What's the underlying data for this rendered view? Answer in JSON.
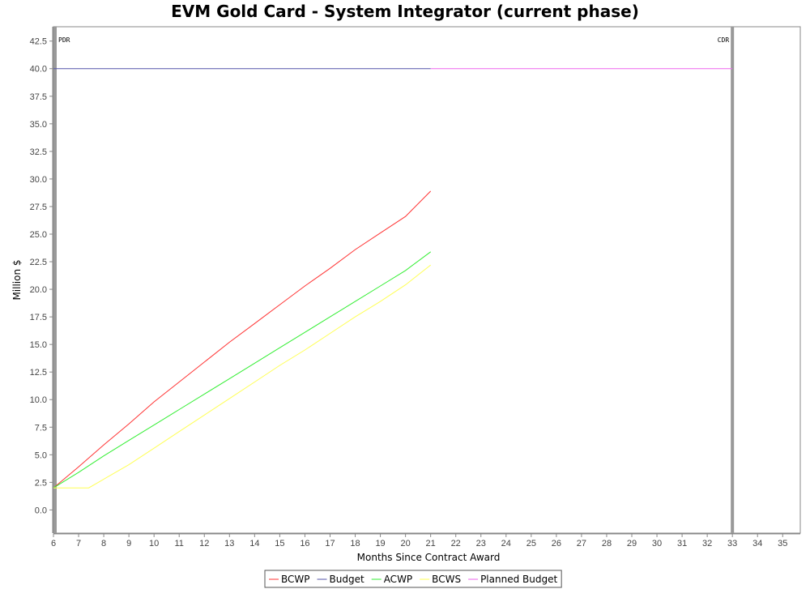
{
  "chart_data": {
    "type": "line",
    "title": "EVM Gold Card - System Integrator (current phase)",
    "xlabel": "Months Since Contract Award",
    "ylabel": "Million $",
    "xlim": [
      6,
      35.7
    ],
    "ylim": [
      -2.1,
      43.8
    ],
    "xticks": [
      6,
      7,
      8,
      9,
      10,
      11,
      12,
      13,
      14,
      15,
      16,
      17,
      18,
      19,
      20,
      21,
      22,
      23,
      24,
      25,
      26,
      27,
      28,
      29,
      30,
      31,
      32,
      33,
      34,
      35
    ],
    "yticks": [
      0.0,
      2.5,
      5.0,
      7.5,
      10.0,
      12.5,
      15.0,
      17.5,
      20.0,
      22.5,
      25.0,
      27.5,
      30.0,
      32.5,
      35.0,
      37.5,
      40.0,
      42.5
    ],
    "grid": false,
    "legend_position": "bottom-center",
    "markers": [
      {
        "label": "PDR",
        "x": 6
      },
      {
        "label": "CDR",
        "x": 33
      }
    ],
    "series": [
      {
        "name": "BCWP",
        "color": "#ff3333",
        "x": [
          6,
          7,
          8,
          9,
          10,
          11,
          12,
          13,
          14,
          15,
          16,
          17,
          18,
          19,
          20,
          21
        ],
        "values": [
          2.0,
          3.9,
          5.9,
          7.8,
          9.8,
          11.6,
          13.4,
          15.2,
          16.9,
          18.6,
          20.3,
          21.9,
          23.6,
          25.1,
          26.6,
          28.9
        ]
      },
      {
        "name": "Budget",
        "color": "#5555aa",
        "x": [
          6,
          21
        ],
        "values": [
          40.0,
          40.0
        ]
      },
      {
        "name": "ACWP",
        "color": "#33ee33",
        "x": [
          6,
          7,
          8,
          9,
          10,
          11,
          12,
          13,
          14,
          15,
          16,
          17,
          18,
          19,
          20,
          21
        ],
        "values": [
          2.0,
          3.4,
          4.9,
          6.3,
          7.7,
          9.1,
          10.5,
          11.9,
          13.3,
          14.7,
          16.1,
          17.5,
          18.9,
          20.3,
          21.7,
          23.4
        ]
      },
      {
        "name": "BCWS",
        "color": "#ffff55",
        "x": [
          6,
          7.4,
          9,
          10,
          11,
          12,
          13,
          14,
          15,
          16,
          17,
          18,
          19,
          20,
          21
        ],
        "values": [
          2.0,
          2.0,
          4.1,
          5.6,
          7.1,
          8.6,
          10.1,
          11.6,
          13.1,
          14.5,
          16.0,
          17.5,
          18.9,
          20.4,
          22.2
        ]
      },
      {
        "name": "Planned Budget",
        "color": "#ee66ee",
        "x": [
          21,
          33
        ],
        "values": [
          40.0,
          40.0
        ]
      }
    ]
  }
}
